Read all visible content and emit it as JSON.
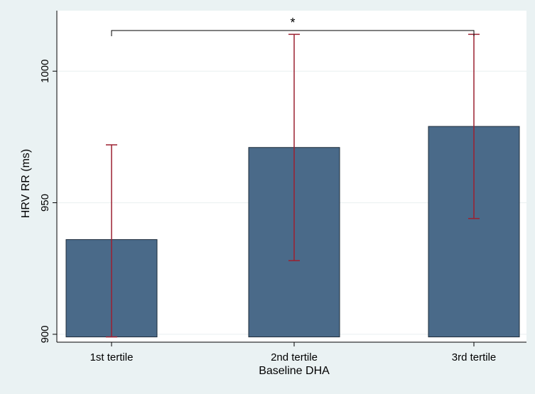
{
  "chart_data": {
    "type": "bar",
    "title": "",
    "xlabel": "Baseline DHA",
    "ylabel": "HRV RR (ms)",
    "categories": [
      "1st tertile",
      "2nd tertile",
      "3rd tertile"
    ],
    "values": [
      936,
      971,
      979
    ],
    "error_low": [
      899,
      928,
      944
    ],
    "error_high": [
      972,
      1014,
      1014
    ],
    "ylim": [
      897,
      1023
    ],
    "bar_base": 899,
    "yticks": [
      900,
      950,
      1000
    ],
    "grid": true,
    "legend": "none",
    "significance": {
      "from": 0,
      "to": 2,
      "label": "*"
    },
    "colors": {
      "background": "#eaf2f3",
      "plot_area": "#ffffff",
      "bar_fill": "#4a6a89",
      "bar_stroke": "#1e2c3a",
      "error_bar": "#9c2030",
      "grid": "#e9eff0"
    }
  }
}
